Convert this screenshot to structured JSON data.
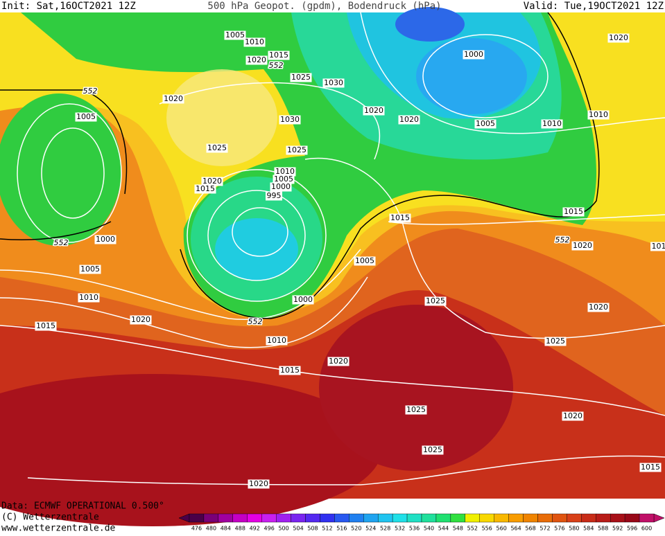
{
  "header": {
    "init": "Init: Sat,16OCT2021 12Z",
    "title": "500 hPa Geopot. (gpdm), Bodendruck (hPa)",
    "valid": "Valid: Tue,19OCT2021 12Z"
  },
  "isobar_labels": [
    "1005",
    "1010",
    "1015",
    "1020",
    "1025",
    "1030",
    "1000",
    "1020",
    "1020",
    "1005",
    "1030",
    "1020",
    "1020",
    "1005",
    "1010",
    "1010",
    "1025",
    "1025",
    "1010",
    "1005",
    "1000",
    "995",
    "1020",
    "1015",
    "1015",
    "1015",
    "1020",
    "101",
    "1000",
    "1005",
    "1005",
    "1010",
    "1000",
    "1025",
    "1020",
    "1015",
    "1020",
    "1010",
    "1025",
    "1020",
    "1015",
    "1025",
    "1020",
    "1025",
    "1015",
    "1020"
  ],
  "geopotential_labels": [
    "552",
    "552",
    "552",
    "552",
    "552"
  ],
  "footer": {
    "data": "Data: ECMWF OPERATIONAL 0.500°",
    "copyright": "(C) Wetterzentrale",
    "url": "www.wetterzentrale.de"
  },
  "colorbar": {
    "labels": [
      "476",
      "480",
      "484",
      "488",
      "492",
      "496",
      "500",
      "504",
      "508",
      "512",
      "516",
      "520",
      "524",
      "528",
      "532",
      "536",
      "540",
      "544",
      "548",
      "552",
      "556",
      "560",
      "564",
      "568",
      "572",
      "576",
      "580",
      "584",
      "588",
      "592",
      "596",
      "600"
    ],
    "colors": [
      "#4a0048",
      "#7a0078",
      "#a000a0",
      "#c400c4",
      "#e400e4",
      "#c820f0",
      "#a020f0",
      "#7a24f0",
      "#5428f0",
      "#3030f0",
      "#2858f0",
      "#2080f0",
      "#20a4f0",
      "#20c4f0",
      "#20e0e8",
      "#20e0c4",
      "#20e09c",
      "#20e070",
      "#30e040",
      "#f0f000",
      "#f8d800",
      "#f8b800",
      "#f89c00",
      "#f08400",
      "#e86c08",
      "#e05410",
      "#d84018",
      "#c82c18",
      "#b81c18",
      "#a81018",
      "#980818",
      "#c01068"
    ]
  }
}
